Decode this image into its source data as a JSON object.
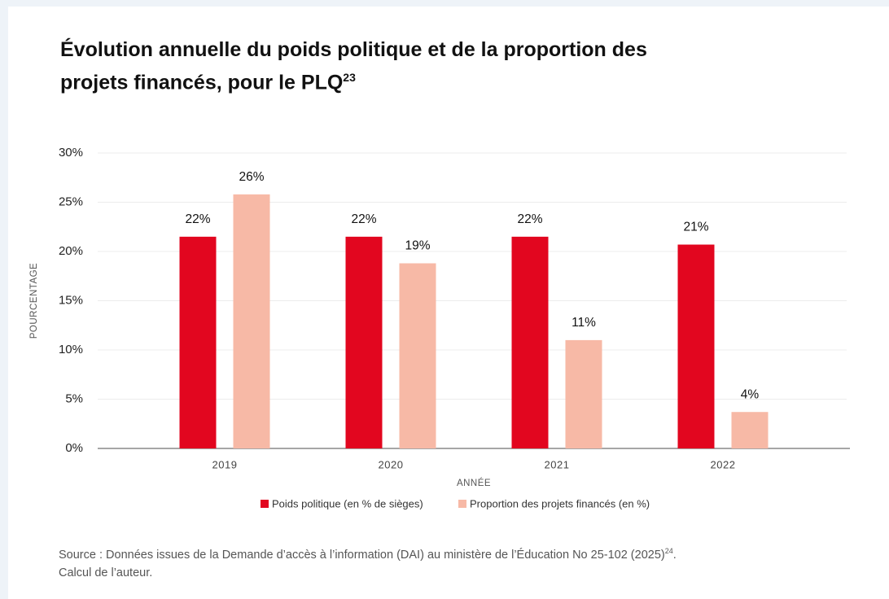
{
  "chart_data": {
    "type": "bar",
    "title": "Évolution annuelle du poids politique et de la proportion des projets financés, pour le PLQ",
    "title_note": "23",
    "categories": [
      "2019",
      "2020",
      "2021",
      "2022"
    ],
    "series": [
      {
        "name": "Poids politique (en % de sièges)",
        "color": "#e2061f",
        "values": [
          21.5,
          21.5,
          21.5,
          20.7
        ],
        "value_labels": [
          "22%",
          "22%",
          "22%",
          "21%"
        ]
      },
      {
        "name": "Proportion des projets financés (en %)",
        "color": "#f7b9a6",
        "values": [
          25.8,
          18.8,
          11,
          3.7
        ],
        "value_labels": [
          "26%",
          "19%",
          "11%",
          "4%"
        ]
      }
    ],
    "ylim": [
      0,
      30
    ],
    "yticks": [
      {
        "value": 0,
        "label": "0%"
      },
      {
        "value": 5,
        "label": "5%"
      },
      {
        "value": 10,
        "label": "10%"
      },
      {
        "value": 15,
        "label": "15%"
      },
      {
        "value": 20,
        "label": "20%"
      },
      {
        "value": 25,
        "label": "25%"
      },
      {
        "value": 30,
        "label": "30%"
      }
    ],
    "grid": true,
    "ylabel": "POURCENTAGE",
    "xlabel": "ANNÉE",
    "source": "Source : Données issues de la Demande d’accès à l’information (DAI) au ministère de l’Éducation No 25-102 (2025)",
    "source_note": "24",
    "source_end": ".",
    "source_line2": "Calcul de l’auteur."
  }
}
